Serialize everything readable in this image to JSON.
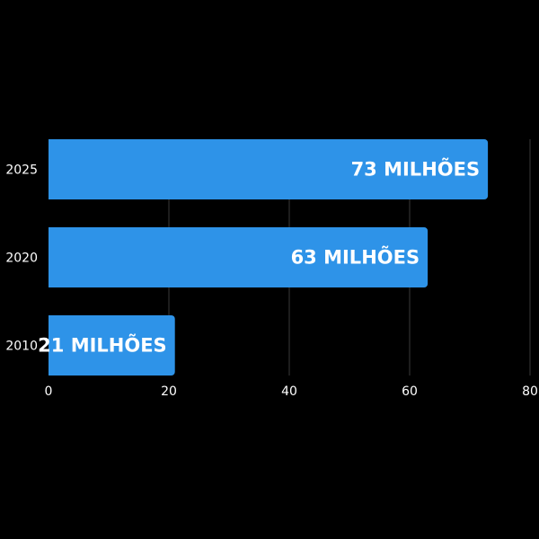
{
  "chart_data": {
    "type": "bar",
    "orientation": "horizontal",
    "categories": [
      "2025",
      "2020",
      "2010"
    ],
    "values": [
      73,
      63,
      21
    ],
    "data_labels": [
      "73 MILHÕES",
      "63 MILHÕES",
      "21 MILHÕES"
    ],
    "xlim": [
      0,
      80
    ],
    "x_ticks": [
      0,
      20,
      40,
      60,
      80
    ],
    "grid": "vertical",
    "title": "",
    "xlabel": "",
    "ylabel": "",
    "colors": {
      "background": "#000000",
      "bar": "#2e93e8",
      "grid": "#3a3a3a",
      "text": "#ffffff"
    }
  }
}
